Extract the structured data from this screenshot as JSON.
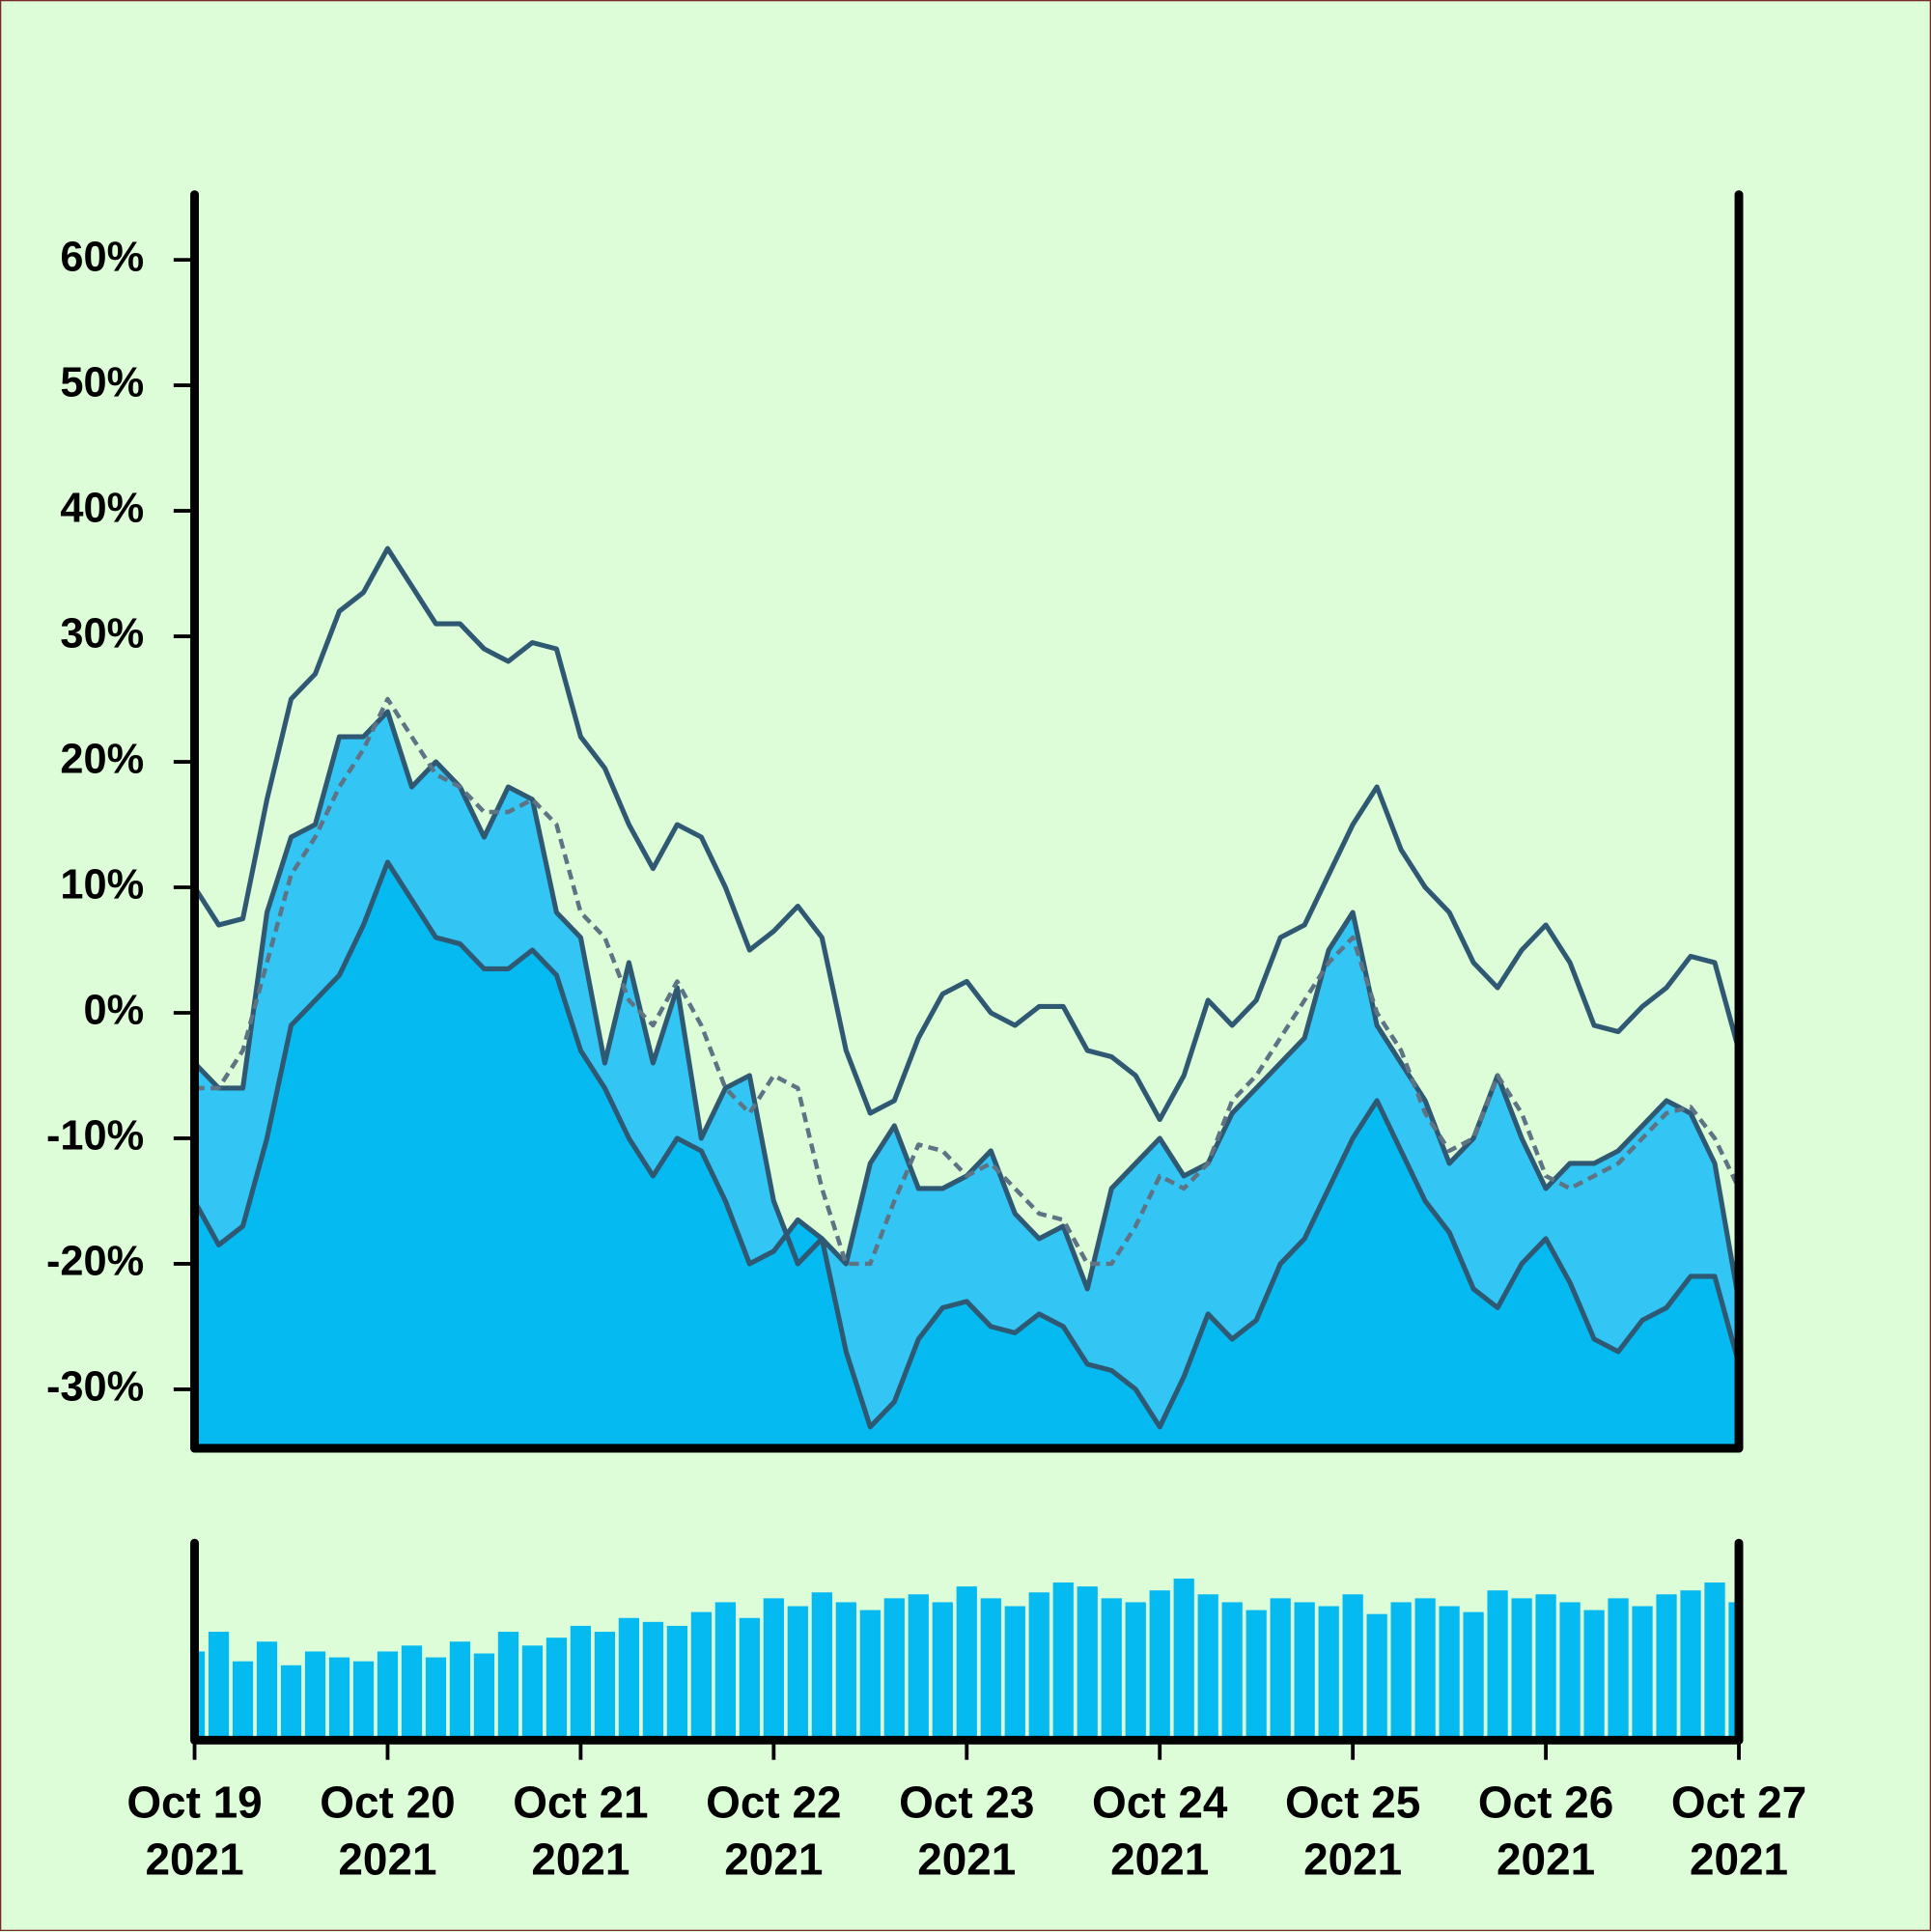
{
  "chart_data": [
    {
      "type": "line",
      "x": [
        0,
        0.125,
        0.25,
        0.375,
        0.5,
        0.625,
        0.75,
        0.875,
        1,
        1.125,
        1.25,
        1.375,
        1.5,
        1.625,
        1.75,
        1.875,
        2,
        2.125,
        2.25,
        2.375,
        2.5,
        2.625,
        2.75,
        2.875,
        3,
        3.125,
        3.25,
        3.375,
        3.5,
        3.625,
        3.75,
        3.875,
        4,
        4.125,
        4.25,
        4.375,
        4.5,
        4.625,
        4.75,
        4.875,
        5,
        5.125,
        5.25,
        5.375,
        5.5,
        5.625,
        5.75,
        5.875,
        6,
        6.125,
        6.25,
        6.375,
        6.5,
        6.625,
        6.75,
        6.875,
        7,
        7.125,
        7.25,
        7.375,
        7.5,
        7.625,
        7.75,
        7.875,
        8
      ],
      "xlim": [
        0,
        8
      ],
      "ylim": [
        -34.7,
        65.2
      ],
      "yticks": [
        {
          "value": -30,
          "label": "-30%"
        },
        {
          "value": -20,
          "label": "-20%"
        },
        {
          "value": -10,
          "label": "-10%"
        },
        {
          "value": 0,
          "label": "0%"
        },
        {
          "value": 10,
          "label": "10%"
        },
        {
          "value": 20,
          "label": "20%"
        },
        {
          "value": 30,
          "label": "30%"
        },
        {
          "value": 40,
          "label": "40%"
        },
        {
          "value": 50,
          "label": "50%"
        },
        {
          "value": 60,
          "label": "60%"
        }
      ],
      "series": [
        {
          "color": "#2f5873",
          "fill": "#33c5f3",
          "dash": false,
          "values": [
            -4,
            -6,
            -6,
            8,
            14,
            15,
            22,
            22,
            24,
            18,
            20,
            18,
            14,
            18,
            17,
            8,
            6,
            -4,
            4,
            -4,
            2,
            -10,
            -6,
            -5,
            -15,
            -20,
            -18,
            -20,
            -12,
            -9,
            -14,
            -14,
            -13,
            -11,
            -16,
            -18,
            -17,
            -22,
            -14,
            -12,
            -10,
            -13,
            -12,
            -8,
            -6,
            -4,
            -2,
            5,
            8,
            -1,
            -4,
            -7,
            -12,
            -10,
            -5,
            -10,
            -14,
            -12,
            -12,
            -11,
            -9,
            -7,
            -8,
            -12,
            -23
          ]
        },
        {
          "color": "#2f5873",
          "fill": "#05baf0",
          "dash": false,
          "values": [
            -15,
            -18.5,
            -17,
            -10,
            -1,
            1,
            3,
            7,
            12,
            9,
            6,
            5.5,
            3.5,
            3.5,
            5,
            3,
            -3,
            -6,
            -10,
            -13,
            -10,
            -11,
            -15,
            -20,
            -19,
            -16.5,
            -18,
            -27,
            -33,
            -31,
            -26,
            -23.5,
            -23,
            -25,
            -25.5,
            -24,
            -25,
            -28,
            -28.5,
            -30,
            -33,
            -29,
            -24,
            -26,
            -24.5,
            -20,
            -18,
            -14,
            -10,
            -7,
            -11,
            -15,
            -17.5,
            -22,
            -23.5,
            -20,
            -18,
            -21.5,
            -26,
            -27,
            -24.5,
            -23.5,
            -21,
            -21,
            -28
          ]
        },
        {
          "color": "#2f5873",
          "dash": false,
          "values": [
            10,
            7,
            7.5,
            17,
            25,
            27,
            32,
            33.5,
            37,
            34,
            31,
            31,
            29,
            28,
            29.5,
            29,
            22,
            19.5,
            15,
            11.5,
            15,
            14,
            10,
            5,
            6.5,
            8.5,
            6,
            -3,
            -8,
            -7,
            -2,
            1.5,
            2.5,
            0,
            -1,
            0.5,
            0.5,
            -3,
            -3.5,
            -5,
            -8.5,
            -5,
            1,
            -1,
            1,
            6,
            7,
            11,
            15,
            18,
            13,
            10,
            8,
            4,
            2,
            5,
            7,
            4,
            -1,
            -1.5,
            0.5,
            2,
            4.5,
            4,
            -3
          ]
        },
        {
          "color": "#5e7384",
          "dash": true,
          "values": [
            -6,
            -6,
            -3,
            4,
            11,
            14,
            18,
            21,
            25,
            22,
            19,
            18,
            16,
            16,
            17,
            15,
            8,
            6,
            1,
            -1,
            2.5,
            -1,
            -6,
            -8,
            -5,
            -6,
            -14,
            -20,
            -20,
            -15,
            -10.5,
            -11,
            -13,
            -12,
            -14,
            -16,
            -16.5,
            -20,
            -20,
            -17,
            -13,
            -14,
            -12,
            -7,
            -5,
            -2,
            1,
            4,
            6,
            0,
            -3,
            -8,
            -11,
            -10,
            -5,
            -8,
            -13,
            -14,
            -13,
            -12,
            -10,
            -8,
            -7.5,
            -10,
            -14
          ]
        }
      ]
    },
    {
      "type": "bar",
      "x": [
        0,
        0.125,
        0.25,
        0.375,
        0.5,
        0.625,
        0.75,
        0.875,
        1,
        1.125,
        1.25,
        1.375,
        1.5,
        1.625,
        1.75,
        1.875,
        2,
        2.125,
        2.25,
        2.375,
        2.5,
        2.625,
        2.75,
        2.875,
        3,
        3.125,
        3.25,
        3.375,
        3.5,
        3.625,
        3.75,
        3.875,
        4,
        4.125,
        4.25,
        4.375,
        4.5,
        4.625,
        4.75,
        4.875,
        5,
        5.125,
        5.25,
        5.375,
        5.5,
        5.625,
        5.75,
        5.875,
        6,
        6.125,
        6.25,
        6.375,
        6.5,
        6.625,
        6.75,
        6.875,
        7,
        7.125,
        7.25,
        7.375,
        7.5,
        7.625,
        7.75,
        7.875,
        8
      ],
      "values": [
        45,
        55,
        40,
        50,
        38,
        45,
        42,
        40,
        45,
        48,
        42,
        50,
        44,
        55,
        48,
        52,
        58,
        55,
        62,
        60,
        58,
        65,
        70,
        62,
        72,
        68,
        75,
        70,
        66,
        72,
        74,
        70,
        78,
        72,
        68,
        75,
        80,
        78,
        72,
        70,
        76,
        82,
        74,
        70,
        66,
        72,
        70,
        68,
        74,
        64,
        70,
        72,
        68,
        65,
        76,
        72,
        74,
        70,
        66,
        72,
        68,
        74,
        76,
        80,
        70
      ],
      "color": "#05baf0",
      "xlim": [
        0,
        8
      ],
      "ylim": [
        0,
        100
      ],
      "xticks": [
        {
          "value": 0,
          "label": "Oct 19\n2021"
        },
        {
          "value": 1,
          "label": "Oct 20\n2021"
        },
        {
          "value": 2,
          "label": "Oct 21\n2021"
        },
        {
          "value": 3,
          "label": "Oct 22\n2021"
        },
        {
          "value": 4,
          "label": "Oct 23\n2021"
        },
        {
          "value": 5,
          "label": "Oct 24\n2021"
        },
        {
          "value": 6,
          "label": "Oct 25\n2021"
        },
        {
          "value": 7,
          "label": "Oct 26\n2021"
        },
        {
          "value": 8,
          "label": "Oct 27\n2021"
        }
      ]
    }
  ]
}
